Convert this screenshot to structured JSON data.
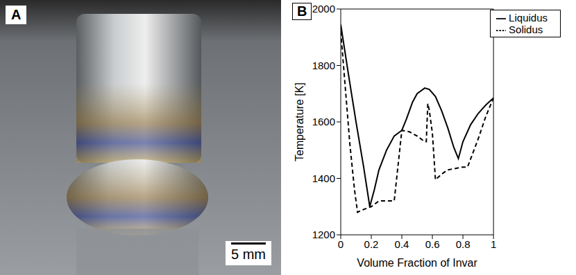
{
  "panel_a": {
    "label": "A",
    "scale_bar": "5 mm"
  },
  "chart_data": {
    "type": "line",
    "title": "B",
    "x_label": "Volume Fraction of Invar",
    "y_label": "Temperature [K]",
    "xlim": [
      0,
      1
    ],
    "xticks": [
      0,
      0.2,
      0.4,
      0.6,
      0.8,
      1
    ],
    "ylim": [
      1200,
      2000
    ],
    "yticks": [
      1200,
      1400,
      1600,
      1800,
      2000
    ],
    "grid": false,
    "legend": "upper right",
    "series": [
      {
        "name": "Liquidus",
        "color": "#000000",
        "line_style": "solid",
        "x": [
          0,
          0.05,
          0.1,
          0.15,
          0.19,
          0.22,
          0.25,
          0.3,
          0.35,
          0.4,
          0.43,
          0.47,
          0.5,
          0.55,
          0.58,
          0.62,
          0.66,
          0.7,
          0.74,
          0.77,
          0.8,
          0.85,
          0.9,
          0.95,
          1
        ],
        "values": [
          1945,
          1770,
          1600,
          1440,
          1300,
          1360,
          1430,
          1500,
          1550,
          1570,
          1610,
          1670,
          1700,
          1720,
          1715,
          1690,
          1640,
          1580,
          1510,
          1470,
          1530,
          1590,
          1630,
          1660,
          1685
        ]
      },
      {
        "name": "Solidus",
        "color": "#000000",
        "line_style": "dashed",
        "x": [
          0,
          0.03,
          0.06,
          0.09,
          0.11,
          0.15,
          0.2,
          0.25,
          0.3,
          0.35,
          0.4,
          0.45,
          0.5,
          0.55,
          0.56,
          0.57,
          0.58,
          0.6,
          0.62,
          0.66,
          0.7,
          0.75,
          0.8,
          0.83,
          0.9,
          0.95,
          1
        ],
        "values": [
          1920,
          1720,
          1520,
          1360,
          1280,
          1290,
          1300,
          1320,
          1320,
          1320,
          1570,
          1565,
          1550,
          1530,
          1530,
          1665,
          1640,
          1560,
          1395,
          1415,
          1430,
          1435,
          1440,
          1440,
          1540,
          1620,
          1685
        ]
      }
    ]
  }
}
